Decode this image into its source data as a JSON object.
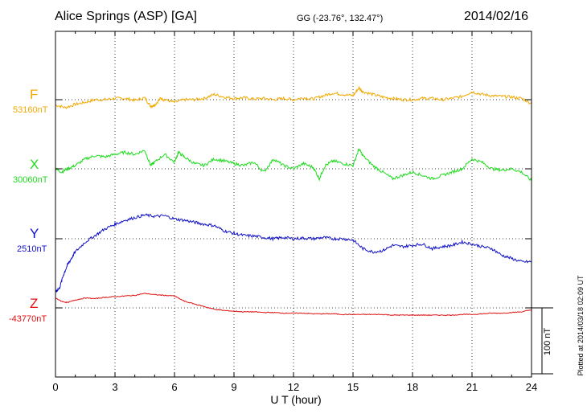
{
  "header": {
    "station": "Alice Springs (ASP)  [GA]",
    "coords": "GG (-23.76°, 132.47°)",
    "date": "2014/02/16"
  },
  "plotted_note": "Plotted at 2014/03/18 02:09 UT",
  "chart_data": {
    "type": "line",
    "xlabel": "U T (hour)",
    "xlim": [
      0,
      24
    ],
    "xticks": [
      0,
      3,
      6,
      9,
      12,
      15,
      18,
      21,
      24
    ],
    "scale_bar": {
      "value": 100,
      "label": "100 nT"
    },
    "grid": true,
    "series": [
      {
        "name": "F",
        "baseline": "53160nT",
        "baseline_value": 53160,
        "color": "#f2a900",
        "x": [
          0,
          0.5,
          1,
          1.5,
          2,
          2.5,
          3,
          3.5,
          4,
          4.5,
          4.8,
          5,
          5.3,
          5.5,
          6,
          6.5,
          7,
          7.5,
          8,
          8.5,
          9,
          9.5,
          10,
          10.5,
          11,
          11.5,
          12,
          12.5,
          13,
          13.5,
          14,
          14.5,
          15,
          15.3,
          15.5,
          16,
          16.5,
          17,
          17.5,
          18,
          18.5,
          19,
          19.5,
          20,
          20.5,
          21,
          21.5,
          22,
          22.5,
          23,
          23.5,
          24
        ],
        "y": [
          -8,
          -12,
          -7,
          -4,
          0,
          0,
          2,
          2,
          -1,
          3,
          -10,
          -8,
          2,
          0,
          -4,
          0,
          0,
          2,
          8,
          4,
          2,
          3,
          1,
          2,
          0,
          2,
          0,
          3,
          1,
          6,
          10,
          8,
          6,
          18,
          12,
          8,
          4,
          2,
          0,
          0,
          2,
          2,
          0,
          2,
          5,
          12,
          8,
          6,
          5,
          4,
          2,
          -6
        ]
      },
      {
        "name": "X",
        "baseline": "30060nT",
        "baseline_value": 30060,
        "color": "#1fdc1f",
        "x": [
          0,
          0.3,
          0.6,
          1,
          1.5,
          2,
          2.5,
          3,
          3.5,
          4,
          4.5,
          4.8,
          5,
          5.5,
          6,
          6.2,
          6.5,
          7,
          7.5,
          8,
          8.5,
          9,
          9.5,
          10,
          10.5,
          11,
          11.5,
          12,
          12.5,
          13,
          13.3,
          13.6,
          14,
          14.5,
          15,
          15.3,
          15.5,
          16,
          16.5,
          17,
          17.5,
          18,
          18.5,
          19,
          19.5,
          20,
          20.5,
          21,
          21.5,
          22,
          22.5,
          23,
          23.5,
          24
        ],
        "y": [
          0,
          -5,
          0,
          5,
          15,
          20,
          18,
          22,
          25,
          22,
          28,
          5,
          10,
          22,
          10,
          25,
          18,
          8,
          5,
          15,
          12,
          8,
          5,
          10,
          -5,
          15,
          5,
          0,
          8,
          2,
          -15,
          5,
          12,
          8,
          5,
          30,
          20,
          5,
          -5,
          -15,
          -10,
          -5,
          -10,
          -15,
          -10,
          -5,
          0,
          15,
          10,
          0,
          -2,
          0,
          -5,
          -18
        ]
      },
      {
        "name": "Y",
        "baseline": "2510nT",
        "baseline_value": 2510,
        "color": "#1010c8",
        "x": [
          0,
          0.2,
          0.4,
          0.6,
          0.8,
          1,
          1.5,
          2,
          2.5,
          3,
          3.5,
          4,
          4.5,
          5,
          5.5,
          6,
          6.5,
          7,
          7.5,
          8,
          8.5,
          9,
          9.5,
          10,
          10.5,
          11,
          11.5,
          12,
          12.5,
          13,
          13.5,
          14,
          14.5,
          15,
          15.5,
          16,
          16.5,
          17,
          17.5,
          18,
          18.5,
          19,
          19.5,
          20,
          20.5,
          21,
          21.5,
          22,
          22.5,
          23,
          23.5,
          24
        ],
        "y": [
          -80,
          -75,
          -55,
          -40,
          -30,
          -20,
          -5,
          5,
          15,
          22,
          28,
          32,
          36,
          34,
          35,
          30,
          28,
          25,
          22,
          20,
          12,
          8,
          5,
          4,
          2,
          0,
          2,
          0,
          1,
          0,
          2,
          0,
          0,
          -2,
          -15,
          -20,
          -18,
          -10,
          -12,
          -10,
          -8,
          -15,
          -12,
          -10,
          -5,
          -8,
          -12,
          -15,
          -25,
          -30,
          -35,
          -35
        ]
      },
      {
        "name": "Z",
        "baseline": "-43770nT",
        "baseline_value": -43770,
        "color": "#e01010",
        "x": [
          0,
          0.3,
          0.6,
          1,
          1.5,
          2,
          2.5,
          3,
          3.5,
          4,
          4.5,
          5,
          5.5,
          6,
          6.5,
          7,
          7.5,
          8,
          8.5,
          9,
          9.5,
          10,
          10.5,
          11,
          11.5,
          12,
          12.5,
          13,
          13.5,
          14,
          14.5,
          15,
          15.5,
          16,
          16.5,
          17,
          17.5,
          18,
          18.5,
          19,
          19.5,
          20,
          20.5,
          21,
          21.5,
          22,
          22.5,
          23,
          23.5,
          24
        ],
        "y": [
          15,
          10,
          8,
          12,
          15,
          14,
          16,
          17,
          18,
          19,
          22,
          20,
          19,
          18,
          10,
          6,
          2,
          -2,
          -4,
          -5,
          -6,
          -6,
          -7,
          -7,
          -8,
          -8,
          -8,
          -9,
          -9,
          -9,
          -10,
          -10,
          -10,
          -10,
          -10,
          -11,
          -11,
          -11,
          -11,
          -11,
          -11,
          -11,
          -10,
          -10,
          -9,
          -8,
          -8,
          -7,
          -6,
          -3
        ]
      }
    ]
  }
}
